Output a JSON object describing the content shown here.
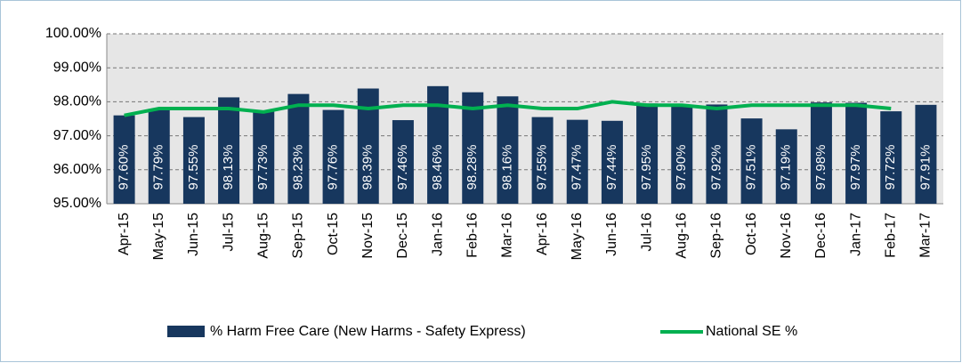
{
  "chart_data": {
    "type": "bar_line",
    "categories": [
      "Apr-15",
      "May-15",
      "Jun-15",
      "Jul-15",
      "Aug-15",
      "Sep-15",
      "Oct-15",
      "Nov-15",
      "Dec-15",
      "Jan-16",
      "Feb-16",
      "Mar-16",
      "Apr-16",
      "May-16",
      "Jun-16",
      "Jul-16",
      "Aug-16",
      "Sep-16",
      "Oct-16",
      "Nov-16",
      "Dec-16",
      "Jan-17",
      "Feb-17",
      "Mar-17"
    ],
    "series": [
      {
        "name": "% Harm Free Care (New Harms - Safety Express)",
        "type": "bar",
        "color": "#17375e",
        "values": [
          97.6,
          97.79,
          97.55,
          98.13,
          97.73,
          98.23,
          97.76,
          98.39,
          97.46,
          98.46,
          98.28,
          98.16,
          97.55,
          97.47,
          97.44,
          97.95,
          97.9,
          97.92,
          97.51,
          97.19,
          97.98,
          97.97,
          97.72,
          97.91
        ],
        "value_labels": [
          "97.60%",
          "97.79%",
          "97.55%",
          "98.13%",
          "97.73%",
          "98.23%",
          "97.76%",
          "98.39%",
          "97.46%",
          "98.46%",
          "98.28%",
          "98.16%",
          "97.55%",
          "97.47%",
          "97.44%",
          "97.95%",
          "97.90%",
          "97.92%",
          "97.51%",
          "97.19%",
          "97.98%",
          "97.97%",
          "97.72%",
          "97.91%"
        ]
      },
      {
        "name": "National SE %",
        "type": "line",
        "color": "#00b050",
        "values": [
          97.6,
          97.8,
          97.8,
          97.8,
          97.7,
          97.9,
          97.9,
          97.8,
          97.9,
          97.9,
          97.8,
          97.9,
          97.8,
          97.8,
          98.0,
          97.9,
          97.9,
          97.8,
          97.9,
          97.9,
          97.9,
          97.9,
          97.8,
          null
        ]
      }
    ],
    "ylim": [
      95,
      100
    ],
    "yticks": [
      {
        "value": 95,
        "label": "95.00%"
      },
      {
        "value": 96,
        "label": "96.00%"
      },
      {
        "value": 97,
        "label": "97.00%"
      },
      {
        "value": 98,
        "label": "98.00%"
      },
      {
        "value": 99,
        "label": "99.00%"
      },
      {
        "value": 100,
        "label": "100.00%"
      }
    ],
    "grid": true,
    "legend": "bottom"
  }
}
